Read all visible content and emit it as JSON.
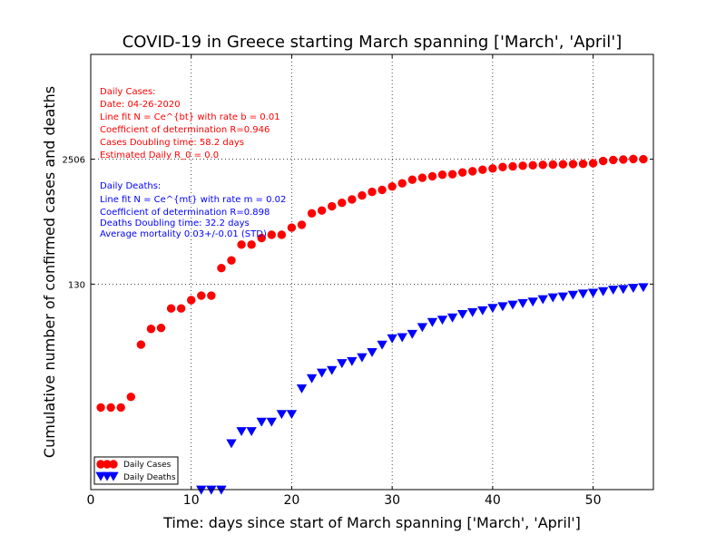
{
  "chart_data": {
    "type": "scatter",
    "title": "COVID-19 in Greece starting March spanning ['March', 'April']",
    "xlabel": "Time: days since start of March spanning ['March', 'April']",
    "ylabel": "Cumulative number of confirmed cases and deaths",
    "xlim": [
      0,
      56
    ],
    "ylim": [
      1,
      30000
    ],
    "yscale": "log",
    "grid": true,
    "legend_position": "lower-left",
    "x_ticks": [
      {
        "value": 0,
        "label": "0"
      },
      {
        "value": 10,
        "label": "10"
      },
      {
        "value": 20,
        "label": "20"
      },
      {
        "value": 30,
        "label": "30"
      },
      {
        "value": 40,
        "label": "40"
      },
      {
        "value": 50,
        "label": "50"
      }
    ],
    "y_ticks": [
      {
        "value": 130,
        "label": "130"
      },
      {
        "value": 2506,
        "label": "2506"
      }
    ],
    "series": [
      {
        "name": "Daily Cases",
        "color": "#ff0000",
        "marker": "circle",
        "x": [
          1,
          2,
          3,
          4,
          5,
          6,
          7,
          8,
          9,
          10,
          11,
          12,
          13,
          14,
          15,
          16,
          17,
          18,
          19,
          20,
          21,
          22,
          23,
          24,
          25,
          26,
          27,
          28,
          29,
          30,
          31,
          32,
          33,
          34,
          35,
          36,
          37,
          38,
          39,
          40,
          41,
          42,
          43,
          44,
          45,
          46,
          47,
          48,
          49,
          50,
          51,
          52,
          53,
          54,
          55
        ],
        "y": [
          7,
          7,
          7,
          9,
          31,
          45,
          46,
          73,
          73,
          89,
          99,
          99,
          190,
          228,
          331,
          331,
          387,
          418,
          418,
          495,
          530,
          695,
          743,
          821,
          892,
          966,
          1061,
          1156,
          1212,
          1314,
          1415,
          1544,
          1613,
          1673,
          1735,
          1755,
          1832,
          1884,
          1955,
          2011,
          2081,
          2114,
          2145,
          2170,
          2192,
          2207,
          2224,
          2235,
          2245,
          2275,
          2401,
          2463,
          2490,
          2517,
          2506
        ]
      },
      {
        "name": "Daily Deaths",
        "color": "#0000ff",
        "marker": "triangle-down",
        "x": [
          11,
          12,
          13,
          14,
          15,
          16,
          17,
          18,
          19,
          20,
          21,
          22,
          23,
          24,
          25,
          26,
          27,
          28,
          29,
          30,
          31,
          32,
          33,
          34,
          35,
          36,
          37,
          38,
          39,
          40,
          41,
          42,
          43,
          44,
          45,
          46,
          47,
          48,
          49,
          50,
          51,
          52,
          53,
          54,
          55
        ],
        "y": [
          1,
          1,
          1,
          3,
          4,
          4,
          5,
          5,
          6,
          6,
          11,
          14,
          16,
          17,
          20,
          21,
          23,
          26,
          31,
          36,
          37,
          40,
          47,
          53,
          56,
          59,
          64,
          67,
          70,
          74,
          77,
          80,
          83,
          86,
          91,
          95,
          97,
          101,
          104,
          106,
          110,
          114,
          116,
          119,
          121
        ]
      }
    ],
    "annotations": {
      "cases": {
        "color": "#ff0000",
        "lines": [
          "Daily Cases:",
          "Date: 04-26-2020",
          "Line fit N = Ce^{bt} with rate b = 0.01",
          "Coefficient of determination R=0.946",
          "Cases Doubling time: 58.2 days",
          "Estimated Daily R_0 = 0.0"
        ]
      },
      "deaths": {
        "color": "#0000ff",
        "lines": [
          "Daily Deaths:",
          "Line fit N = Ce^{mt} with rate m = 0.02",
          "Coefficient of determination R=0.898",
          "Deaths Doubling time: 32.2 days",
          "Average mortality 0.03+/-0.01 (STD)"
        ]
      }
    }
  }
}
